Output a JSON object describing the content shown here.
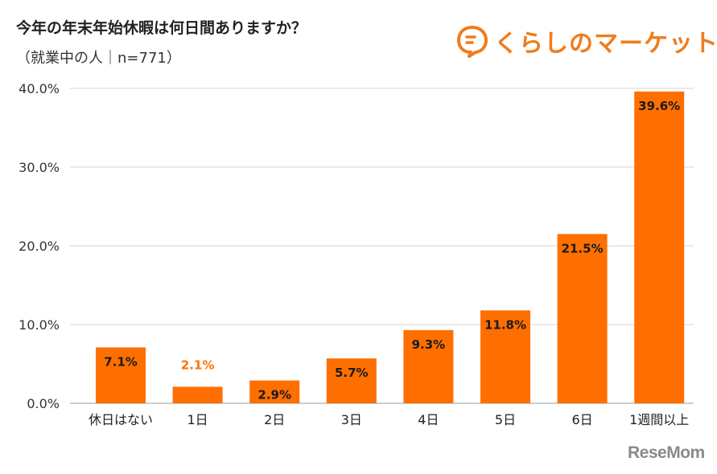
{
  "header": {
    "title": "今年の年末年始休暇は何日間ありますか？",
    "subtitle": "（就業中の人｜n=771）"
  },
  "brand": {
    "logo_text": "くらしのマーケット",
    "icon": "speech-bubble-logo-icon"
  },
  "watermark": {
    "text": "ReseMom"
  },
  "colors": {
    "bar": "#ff6f00",
    "label_dark": "#1a1a1a",
    "label_orange": "#ff6f00",
    "grid": "#d6d6d6",
    "brand": "#f07c1c"
  },
  "chart_data": {
    "type": "bar",
    "categories": [
      "休日はない",
      "1日",
      "2日",
      "3日",
      "4日",
      "5日",
      "6日",
      "1週間以上"
    ],
    "values": [
      7.1,
      2.1,
      2.9,
      5.7,
      9.3,
      11.8,
      21.5,
      39.6
    ],
    "data_labels": [
      "7.1%",
      "2.1%",
      "2.9%",
      "5.7%",
      "9.3%",
      "11.8%",
      "21.5%",
      "39.6%"
    ],
    "yticks": [
      "0.0%",
      "10.0%",
      "20.0%",
      "30.0%",
      "40.0%"
    ],
    "ytick_values": [
      0,
      10,
      20,
      30,
      40
    ],
    "ylim": [
      0,
      40
    ],
    "grid": true,
    "legend": "none"
  }
}
